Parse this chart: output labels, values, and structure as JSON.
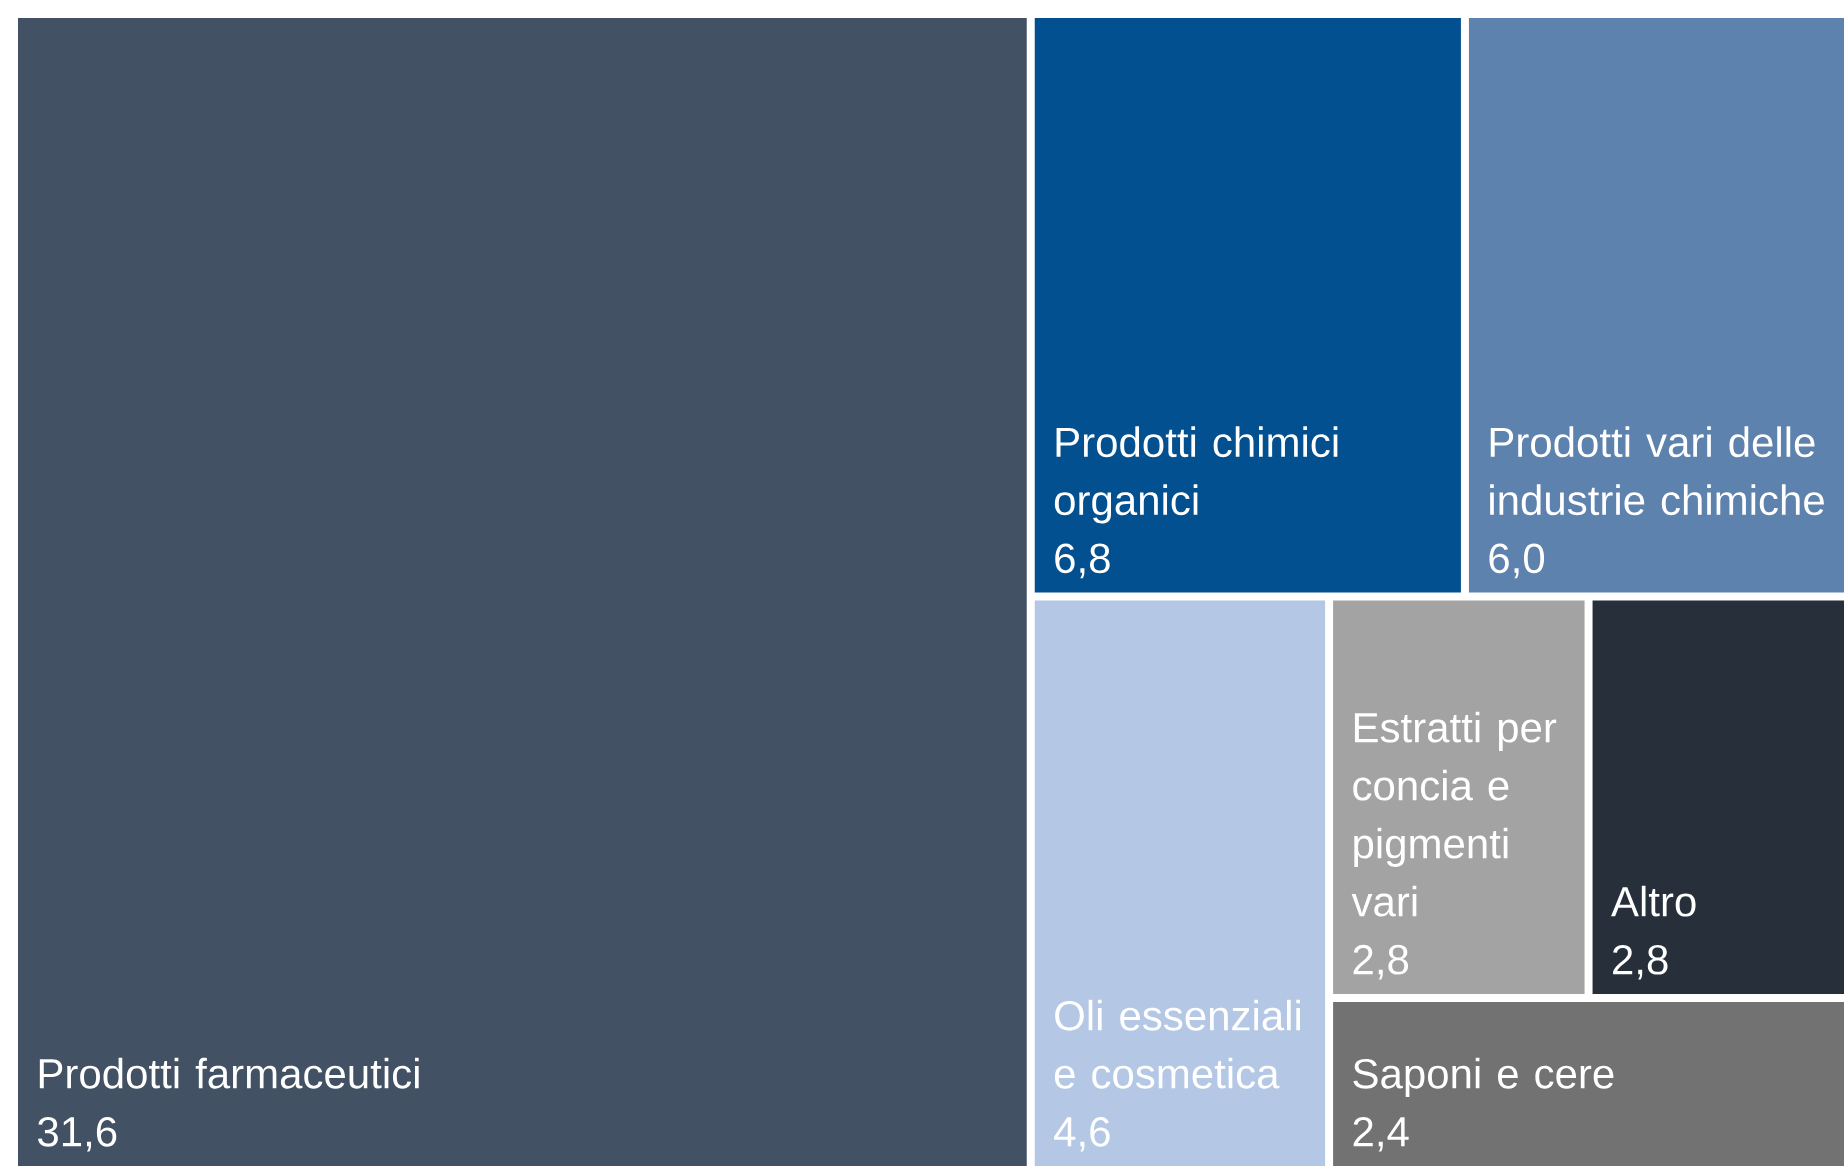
{
  "chart_data": {
    "type": "other",
    "categories": [
      "Prodotti farmaceutici",
      "Prodotti chimici organici",
      "Prodotti vari delle industrie chimiche",
      "Oli essenziali e cosmetica",
      "Estratti per concia e pigmenti vari",
      "Altro",
      "Saponi e cere"
    ],
    "values": [
      31.6,
      6.8,
      6.0,
      4.6,
      2.8,
      2.8,
      2.4
    ],
    "value_labels": [
      "31,6",
      "6,8",
      "6,0",
      "4,6",
      "2,8",
      "2,8",
      "2,4"
    ],
    "colors": [
      "#425163",
      "#02508f",
      "#5e82ae",
      "#b4c8e6",
      "#a3a3a3",
      "#262f3a",
      "#727272"
    ]
  }
}
